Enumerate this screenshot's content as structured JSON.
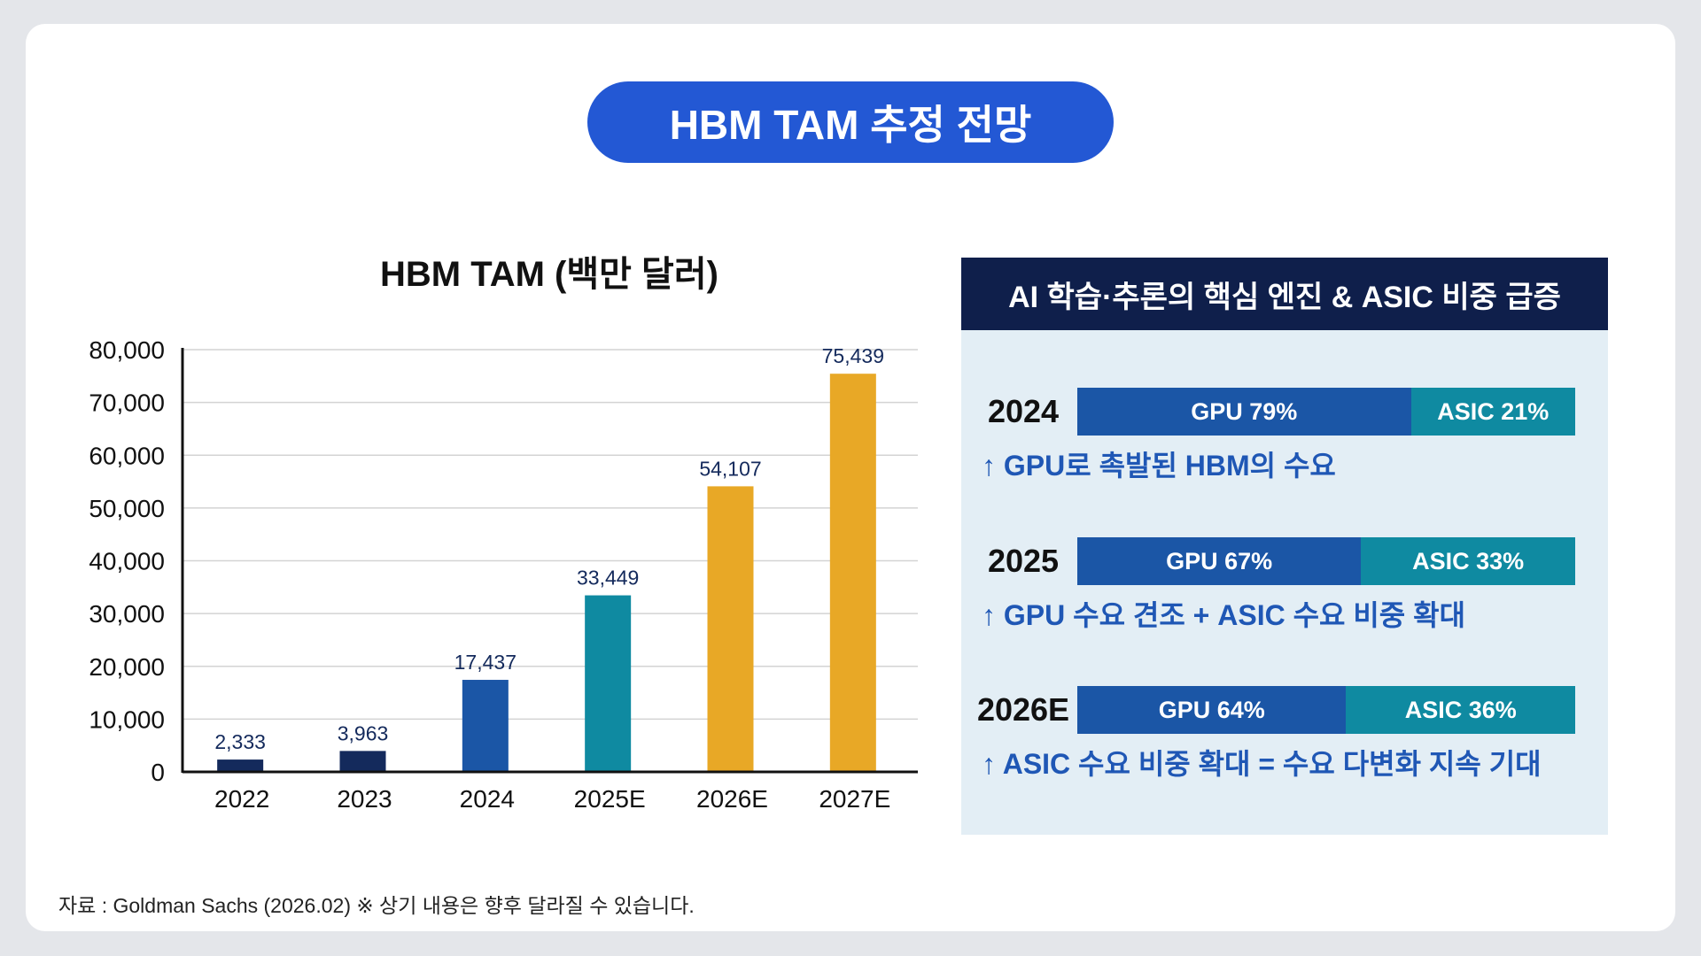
{
  "title": "HBM TAM 추정 전망",
  "source_note": "자료 : Goldman Sachs (2026.02) ※ 상기 내용은 향후 달라질 수 있습니다.",
  "colors": {
    "title_bg": "#2358d4",
    "dark_navy": "#0f1f4b",
    "blue": "#1b56a6",
    "teal": "#0f8aa1",
    "gold": "#e8a826",
    "panel_bg": "#e3eef5",
    "note_text": "#1f57b5"
  },
  "chart_data": {
    "type": "bar",
    "title": "HBM TAM (백만 달러)",
    "categories": [
      "2022",
      "2023",
      "2024",
      "2025E",
      "2026E",
      "2027E"
    ],
    "values": [
      2333,
      3963,
      17437,
      33449,
      54107,
      75439
    ],
    "value_labels": [
      "2,333",
      "3,963",
      "17,437",
      "33,449",
      "54,107",
      "75,439"
    ],
    "bar_colors": [
      "#142a5c",
      "#142a5c",
      "#1b56a6",
      "#0f8aa1",
      "#e8a826",
      "#e8a826"
    ],
    "ylim": [
      0,
      80000
    ],
    "yticks": [
      0,
      10000,
      20000,
      30000,
      40000,
      50000,
      60000,
      70000,
      80000
    ],
    "ytick_labels": [
      "0",
      "10,000",
      "20,000",
      "30,000",
      "40,000",
      "50,000",
      "60,000",
      "70,000",
      "80,000"
    ],
    "grid": true,
    "legend": "none"
  },
  "panel": {
    "header": "AI 학습·추론의 핵심 엔진 & ASIC 비중 급증",
    "rows": [
      {
        "year": "2024",
        "gpu_label": "GPU 79%",
        "gpu_share": 0.67,
        "asic_label": "ASIC 21%",
        "note": "↑ GPU로 촉발된 HBM의 수요"
      },
      {
        "year": "2025",
        "gpu_label": "GPU 67%",
        "gpu_share": 0.57,
        "asic_label": "ASIC 33%",
        "note": "↑ GPU 수요 견조 + ASIC 수요 비중 확대"
      },
      {
        "year": "2026E",
        "gpu_label": "GPU 64%",
        "gpu_share": 0.54,
        "asic_label": "ASIC 36%",
        "note": "↑ ASIC 수요 비중 확대 = 수요 다변화 지속 기대"
      }
    ]
  }
}
